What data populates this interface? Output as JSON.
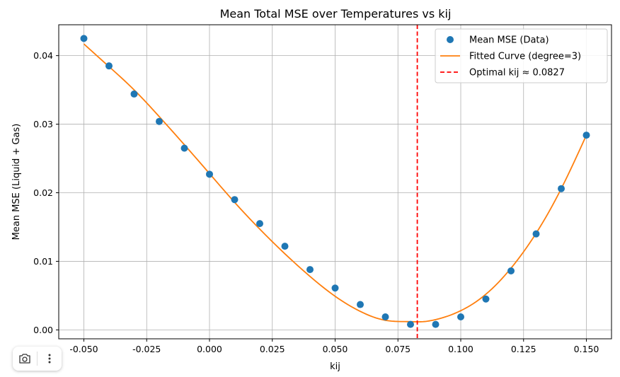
{
  "chart_data": {
    "type": "scatter",
    "title": "Mean Total MSE over Temperatures vs kij",
    "xlabel": "kij",
    "ylabel": "Mean MSE (Liquid + Gas)",
    "xlim": [
      -0.06,
      0.16
    ],
    "ylim": [
      -0.0013,
      0.0445
    ],
    "xticks": [
      -0.05,
      -0.025,
      0.0,
      0.025,
      0.05,
      0.075,
      0.1,
      0.125,
      0.15
    ],
    "xtick_labels": [
      "-0.050",
      "-0.025",
      "0.000",
      "0.025",
      "0.050",
      "0.075",
      "0.100",
      "0.125",
      "0.150"
    ],
    "yticks": [
      0.0,
      0.01,
      0.02,
      0.03,
      0.04
    ],
    "ytick_labels": [
      "0.00",
      "0.01",
      "0.02",
      "0.03",
      "0.04"
    ],
    "grid": true,
    "legend_position": "top-right",
    "series": [
      {
        "name": "Mean MSE (Data)",
        "kind": "scatter",
        "color": "#1f77b4",
        "x": [
          -0.05,
          -0.04,
          -0.03,
          -0.02,
          -0.01,
          0.0,
          0.01,
          0.02,
          0.03,
          0.04,
          0.05,
          0.06,
          0.07,
          0.08,
          0.09,
          0.1,
          0.11,
          0.12,
          0.13,
          0.14,
          0.15
        ],
        "y": [
          0.0425,
          0.0385,
          0.0344,
          0.0304,
          0.0265,
          0.0227,
          0.019,
          0.0155,
          0.0122,
          0.0088,
          0.0061,
          0.0037,
          0.0019,
          0.0008,
          0.0008,
          0.0019,
          0.0045,
          0.0086,
          0.014,
          0.0206,
          0.0284
        ]
      },
      {
        "name": "Fitted Curve (degree=3)",
        "kind": "line",
        "color": "#ff7f0e",
        "x": [
          -0.05,
          -0.04,
          -0.03,
          -0.02,
          -0.01,
          0.0,
          0.01,
          0.02,
          0.03,
          0.04,
          0.05,
          0.06,
          0.07,
          0.08,
          0.085,
          0.09,
          0.1,
          0.11,
          0.12,
          0.13,
          0.14,
          0.15
        ],
        "y": [
          0.0417,
          0.0384,
          0.035,
          0.0311,
          0.027,
          0.0228,
          0.0186,
          0.0147,
          0.0111,
          0.0078,
          0.0049,
          0.0027,
          0.0014,
          0.0012,
          0.0012,
          0.0015,
          0.0028,
          0.0052,
          0.009,
          0.0141,
          0.0206,
          0.0284
        ]
      },
      {
        "name": "Optimal kij ≈ 0.0827",
        "kind": "vline",
        "color": "#ff0000",
        "x": 0.0827
      }
    ]
  },
  "toolbar": {
    "camera_icon": "camera-icon",
    "more_icon": "more-vertical-icon"
  }
}
